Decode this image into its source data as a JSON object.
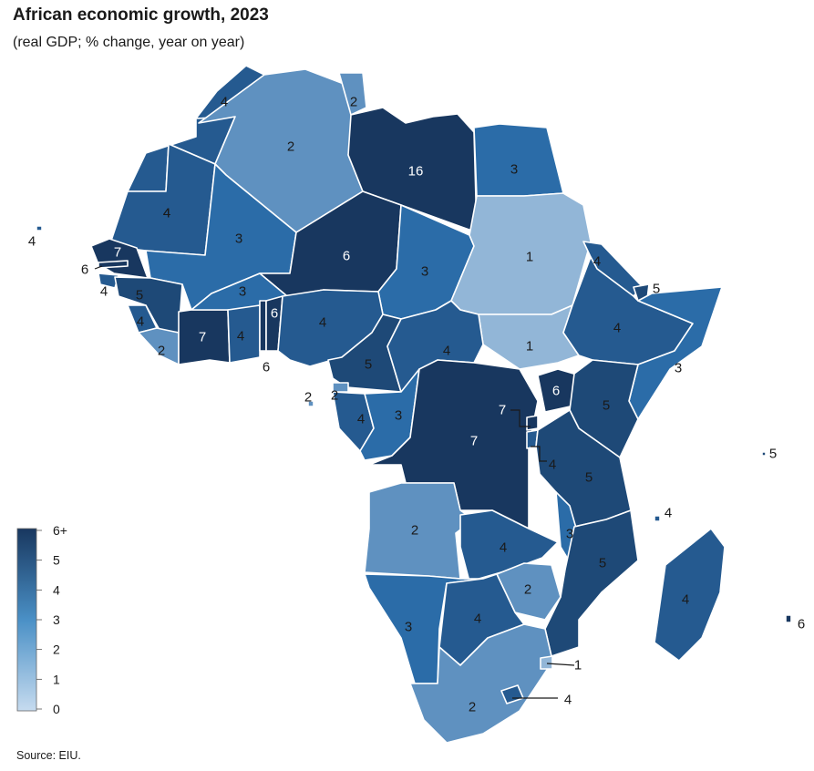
{
  "title": "African economic growth, 2023",
  "subtitle": "(real GDP; % change, year on year)",
  "source": "Source: EIU.",
  "legend": {
    "ticks": [
      "6+",
      "5",
      "4",
      "3",
      "2",
      "1",
      "0"
    ],
    "min": 0,
    "max": 6,
    "colors": [
      "#c6dbef",
      "#2b6ca8",
      "#18375f"
    ]
  },
  "regions": [
    {
      "name": "morocco",
      "value": 4,
      "label": "4"
    },
    {
      "name": "western-sahara",
      "value": 4,
      "label": "4"
    },
    {
      "name": "algeria",
      "value": 2,
      "label": "2"
    },
    {
      "name": "tunisia",
      "value": 2,
      "label": "2"
    },
    {
      "name": "libya",
      "value": 16,
      "label": "16"
    },
    {
      "name": "egypt",
      "value": 3,
      "label": "3"
    },
    {
      "name": "mauritania",
      "value": 4,
      "label": "4"
    },
    {
      "name": "mali",
      "value": 3,
      "label": "3"
    },
    {
      "name": "niger",
      "value": 6,
      "label": "6"
    },
    {
      "name": "chad",
      "value": 3,
      "label": "3"
    },
    {
      "name": "sudan",
      "value": 1,
      "label": "1"
    },
    {
      "name": "south-sudan",
      "value": 1,
      "label": "1"
    },
    {
      "name": "eritrea",
      "value": 4,
      "label": "4"
    },
    {
      "name": "djibouti",
      "value": 5,
      "label": "5"
    },
    {
      "name": "ethiopia",
      "value": 4,
      "label": "4"
    },
    {
      "name": "somalia",
      "value": 3,
      "label": "3"
    },
    {
      "name": "senegal",
      "value": 7,
      "label": "7"
    },
    {
      "name": "gambia",
      "value": 6,
      "label": "6"
    },
    {
      "name": "guinea-bissau",
      "value": 4,
      "label": "4"
    },
    {
      "name": "guinea",
      "value": 5,
      "label": "5"
    },
    {
      "name": "sierra-leone",
      "value": 4,
      "label": "4"
    },
    {
      "name": "liberia",
      "value": 2,
      "label": "2"
    },
    {
      "name": "cote-divoire",
      "value": 7,
      "label": "7"
    },
    {
      "name": "burkina-faso",
      "value": 3,
      "label": "3"
    },
    {
      "name": "ghana",
      "value": 4,
      "label": "4"
    },
    {
      "name": "togo",
      "value": 6,
      "label": "6"
    },
    {
      "name": "benin",
      "value": 6,
      "label": "6"
    },
    {
      "name": "nigeria",
      "value": 4,
      "label": "4"
    },
    {
      "name": "cameroon",
      "value": 5,
      "label": "5"
    },
    {
      "name": "central-african-republic",
      "value": 4,
      "label": "4"
    },
    {
      "name": "equatorial-guinea",
      "value": 2,
      "label": "2"
    },
    {
      "name": "sao-tome",
      "value": 2,
      "label": "2"
    },
    {
      "name": "gabon",
      "value": 4,
      "label": "4"
    },
    {
      "name": "congo",
      "value": 3,
      "label": "3"
    },
    {
      "name": "dr-congo",
      "value": 7,
      "label": "7"
    },
    {
      "name": "uganda",
      "value": 6,
      "label": "6"
    },
    {
      "name": "kenya",
      "value": 5,
      "label": "5"
    },
    {
      "name": "rwanda",
      "value": 7,
      "label": "7"
    },
    {
      "name": "burundi",
      "value": 4,
      "label": "4"
    },
    {
      "name": "tanzania",
      "value": 5,
      "label": "5"
    },
    {
      "name": "angola",
      "value": 2,
      "label": "2"
    },
    {
      "name": "zambia",
      "value": 4,
      "label": "4"
    },
    {
      "name": "malawi",
      "value": 3,
      "label": "3"
    },
    {
      "name": "mozambique",
      "value": 5,
      "label": "5"
    },
    {
      "name": "zimbabwe",
      "value": 2,
      "label": "2"
    },
    {
      "name": "namibia",
      "value": 3,
      "label": "3"
    },
    {
      "name": "botswana",
      "value": 4,
      "label": "4"
    },
    {
      "name": "south-africa",
      "value": 2,
      "label": "2"
    },
    {
      "name": "eswatini",
      "value": 1,
      "label": "1"
    },
    {
      "name": "lesotho",
      "value": 4,
      "label": "4"
    },
    {
      "name": "madagascar",
      "value": 4,
      "label": "4"
    },
    {
      "name": "cape-verde",
      "value": 4,
      "label": "4"
    },
    {
      "name": "seychelles",
      "value": 5,
      "label": "5"
    },
    {
      "name": "comoros",
      "value": 4,
      "label": "4"
    },
    {
      "name": "mauritius",
      "value": 6,
      "label": "6"
    }
  ]
}
